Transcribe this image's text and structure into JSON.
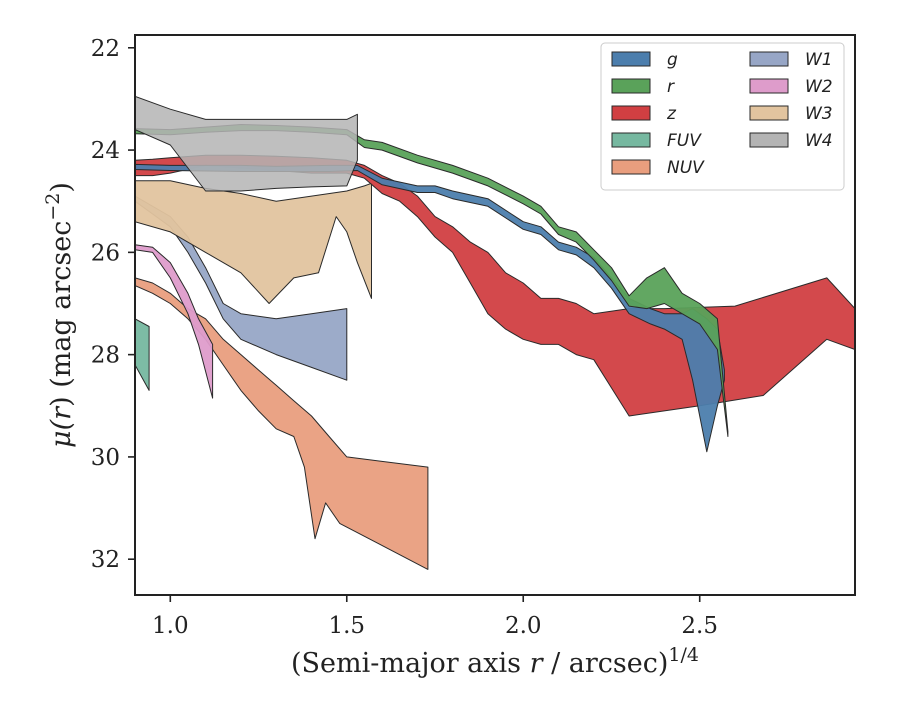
{
  "chart_data": {
    "type": "area",
    "xlabel_main": "(Semi-major axis ",
    "xlabel_var": "r",
    "xlabel_rest": " / arcsec)",
    "xlabel_sup": "1/4",
    "ylabel_main": "μ(",
    "ylabel_var": "r",
    "ylabel_rest": ") (mag arcsec",
    "ylabel_sup": "−2",
    "ylabel_end": ")",
    "xlim": [
      0.9,
      2.94
    ],
    "ylim": [
      32.7,
      21.75
    ],
    "y_inverted": true,
    "xticks": [
      {
        "v": 1.0,
        "label": "1.0"
      },
      {
        "v": 1.5,
        "label": "1.5"
      },
      {
        "v": 2.0,
        "label": "2.0"
      },
      {
        "v": 2.5,
        "label": "2.5"
      }
    ],
    "yticks": [
      {
        "v": 22,
        "label": "22"
      },
      {
        "v": 24,
        "label": "24"
      },
      {
        "v": 26,
        "label": "26"
      },
      {
        "v": 28,
        "label": "28"
      },
      {
        "v": 30,
        "label": "30"
      },
      {
        "v": 32,
        "label": "32"
      }
    ],
    "legend_position": "top-right",
    "legend_columns": 2,
    "draw_order": [
      "FUV",
      "NUV",
      "W2",
      "W1",
      "W3",
      "z",
      "g",
      "r",
      "W4"
    ],
    "series": [
      {
        "name": "g",
        "color": "#4c7ead",
        "legend_col": 0,
        "upper": [
          [
            0.9,
            24.28
          ],
          [
            1.0,
            24.3
          ],
          [
            1.2,
            24.3
          ],
          [
            1.3,
            24.32
          ],
          [
            1.45,
            24.3
          ],
          [
            1.53,
            24.3
          ],
          [
            1.6,
            24.55
          ],
          [
            1.7,
            24.7
          ],
          [
            1.75,
            24.7
          ],
          [
            1.8,
            24.8
          ],
          [
            1.9,
            24.95
          ],
          [
            2.0,
            25.4
          ],
          [
            2.05,
            25.5
          ],
          [
            2.1,
            25.8
          ],
          [
            2.15,
            25.9
          ],
          [
            2.2,
            26.1
          ],
          [
            2.25,
            26.5
          ],
          [
            2.3,
            26.9
          ],
          [
            2.33,
            27.0
          ],
          [
            2.36,
            27.1
          ],
          [
            2.4,
            27.2
          ],
          [
            2.45,
            27.2
          ],
          [
            2.48,
            27.1
          ],
          [
            2.52,
            27.3
          ],
          [
            2.55,
            27.5
          ],
          [
            2.57,
            28.3
          ]
        ],
        "lower": [
          [
            0.9,
            24.38
          ],
          [
            1.0,
            24.4
          ],
          [
            1.2,
            24.42
          ],
          [
            1.3,
            24.42
          ],
          [
            1.45,
            24.42
          ],
          [
            1.53,
            24.4
          ],
          [
            1.6,
            24.68
          ],
          [
            1.7,
            24.83
          ],
          [
            1.75,
            24.83
          ],
          [
            1.8,
            24.95
          ],
          [
            1.9,
            25.1
          ],
          [
            2.0,
            25.55
          ],
          [
            2.05,
            25.65
          ],
          [
            2.1,
            25.95
          ],
          [
            2.15,
            26.05
          ],
          [
            2.2,
            26.3
          ],
          [
            2.25,
            26.7
          ],
          [
            2.3,
            27.2
          ],
          [
            2.33,
            27.3
          ],
          [
            2.36,
            27.4
          ],
          [
            2.4,
            27.5
          ],
          [
            2.45,
            27.7
          ],
          [
            2.48,
            28.5
          ],
          [
            2.52,
            29.9
          ],
          [
            2.55,
            29.0
          ],
          [
            2.57,
            28.5
          ]
        ]
      },
      {
        "name": "r",
        "color": "#5aa25a",
        "legend_col": 0,
        "upper": [
          [
            0.9,
            23.58
          ],
          [
            1.0,
            23.6
          ],
          [
            1.1,
            23.55
          ],
          [
            1.2,
            23.5
          ],
          [
            1.3,
            23.52
          ],
          [
            1.4,
            23.55
          ],
          [
            1.5,
            23.6
          ],
          [
            1.55,
            23.8
          ],
          [
            1.6,
            23.85
          ],
          [
            1.7,
            24.1
          ],
          [
            1.8,
            24.3
          ],
          [
            1.9,
            24.55
          ],
          [
            2.0,
            24.9
          ],
          [
            2.05,
            25.1
          ],
          [
            2.1,
            25.5
          ],
          [
            2.15,
            25.6
          ],
          [
            2.2,
            25.95
          ],
          [
            2.25,
            26.3
          ],
          [
            2.3,
            26.85
          ],
          [
            2.35,
            26.5
          ],
          [
            2.4,
            26.3
          ],
          [
            2.45,
            26.8
          ],
          [
            2.5,
            27.0
          ],
          [
            2.55,
            27.3
          ],
          [
            2.58,
            29.5
          ]
        ],
        "lower": [
          [
            0.9,
            23.68
          ],
          [
            1.0,
            23.7
          ],
          [
            1.1,
            23.65
          ],
          [
            1.2,
            23.62
          ],
          [
            1.3,
            23.62
          ],
          [
            1.4,
            23.65
          ],
          [
            1.5,
            23.7
          ],
          [
            1.55,
            23.95
          ],
          [
            1.6,
            24.0
          ],
          [
            1.7,
            24.25
          ],
          [
            1.8,
            24.45
          ],
          [
            1.9,
            24.7
          ],
          [
            2.0,
            25.05
          ],
          [
            2.05,
            25.25
          ],
          [
            2.1,
            25.65
          ],
          [
            2.15,
            25.8
          ],
          [
            2.2,
            26.15
          ],
          [
            2.25,
            26.55
          ],
          [
            2.3,
            27.05
          ],
          [
            2.35,
            27.1
          ],
          [
            2.4,
            27.0
          ],
          [
            2.45,
            27.2
          ],
          [
            2.5,
            27.4
          ],
          [
            2.55,
            27.9
          ],
          [
            2.58,
            29.6
          ]
        ]
      },
      {
        "name": "z",
        "color": "#d13f42",
        "legend_col": 0,
        "upper": [
          [
            0.9,
            24.2
          ],
          [
            0.95,
            24.18
          ],
          [
            1.0,
            24.15
          ],
          [
            1.1,
            24.1
          ],
          [
            1.2,
            24.1
          ],
          [
            1.3,
            24.12
          ],
          [
            1.4,
            24.15
          ],
          [
            1.5,
            24.2
          ],
          [
            1.55,
            24.3
          ],
          [
            1.6,
            24.5
          ],
          [
            1.65,
            24.65
          ],
          [
            1.7,
            24.9
          ],
          [
            1.75,
            25.3
          ],
          [
            1.8,
            25.5
          ],
          [
            1.85,
            25.8
          ],
          [
            1.9,
            26.0
          ],
          [
            1.95,
            26.4
          ],
          [
            2.0,
            26.6
          ],
          [
            2.05,
            26.9
          ],
          [
            2.1,
            26.9
          ],
          [
            2.15,
            27.0
          ],
          [
            2.2,
            27.2
          ],
          [
            2.3,
            27.1
          ],
          [
            2.4,
            27.1
          ],
          [
            2.6,
            27.05
          ],
          [
            2.86,
            26.5
          ],
          [
            2.94,
            27.1
          ]
        ],
        "lower": [
          [
            0.9,
            24.5
          ],
          [
            0.95,
            24.5
          ],
          [
            1.0,
            24.45
          ],
          [
            1.1,
            24.3
          ],
          [
            1.2,
            24.35
          ],
          [
            1.3,
            24.4
          ],
          [
            1.4,
            24.45
          ],
          [
            1.5,
            24.45
          ],
          [
            1.55,
            24.55
          ],
          [
            1.6,
            24.85
          ],
          [
            1.65,
            25.0
          ],
          [
            1.7,
            25.3
          ],
          [
            1.75,
            25.7
          ],
          [
            1.8,
            26.0
          ],
          [
            1.85,
            26.6
          ],
          [
            1.9,
            27.2
          ],
          [
            1.95,
            27.5
          ],
          [
            2.0,
            27.7
          ],
          [
            2.05,
            27.8
          ],
          [
            2.1,
            27.8
          ],
          [
            2.15,
            28.0
          ],
          [
            2.2,
            28.1
          ],
          [
            2.3,
            29.2
          ],
          [
            2.5,
            29.0
          ],
          [
            2.68,
            28.8
          ],
          [
            2.86,
            27.7
          ],
          [
            2.94,
            27.9
          ]
        ]
      },
      {
        "name": "FUV",
        "color": "#76b8a0",
        "legend_col": 0,
        "upper": [
          [
            0.9,
            27.3
          ],
          [
            0.94,
            27.45
          ]
        ],
        "lower": [
          [
            0.9,
            28.2
          ],
          [
            0.94,
            28.7
          ]
        ]
      },
      {
        "name": "NUV",
        "color": "#e99e7e",
        "legend_col": 0,
        "upper": [
          [
            0.9,
            26.5
          ],
          [
            0.95,
            26.6
          ],
          [
            1.0,
            26.8
          ],
          [
            1.05,
            27.1
          ],
          [
            1.1,
            27.3
          ],
          [
            1.15,
            27.7
          ],
          [
            1.2,
            28.0
          ],
          [
            1.25,
            28.3
          ],
          [
            1.3,
            28.6
          ],
          [
            1.35,
            28.9
          ],
          [
            1.4,
            29.2
          ],
          [
            1.45,
            29.6
          ],
          [
            1.5,
            30.0
          ],
          [
            1.73,
            30.2
          ]
        ],
        "lower": [
          [
            0.9,
            26.65
          ],
          [
            0.95,
            26.8
          ],
          [
            1.0,
            27.0
          ],
          [
            1.05,
            27.3
          ],
          [
            1.1,
            27.7
          ],
          [
            1.15,
            28.2
          ],
          [
            1.2,
            28.7
          ],
          [
            1.25,
            29.1
          ],
          [
            1.3,
            29.45
          ],
          [
            1.35,
            29.6
          ],
          [
            1.38,
            30.2
          ],
          [
            1.41,
            31.6
          ],
          [
            1.44,
            30.9
          ],
          [
            1.48,
            31.3
          ],
          [
            1.73,
            32.2
          ]
        ]
      },
      {
        "name": "W1",
        "color": "#97a6c6",
        "legend_col": 1,
        "upper": [
          [
            0.9,
            24.9
          ],
          [
            1.0,
            25.3
          ],
          [
            1.05,
            25.7
          ],
          [
            1.1,
            26.3
          ],
          [
            1.15,
            27.0
          ],
          [
            1.2,
            27.2
          ],
          [
            1.3,
            27.3
          ],
          [
            1.4,
            27.2
          ],
          [
            1.5,
            27.1
          ]
        ],
        "lower": [
          [
            0.9,
            25.0
          ],
          [
            1.0,
            25.5
          ],
          [
            1.05,
            26.0
          ],
          [
            1.1,
            26.6
          ],
          [
            1.15,
            27.3
          ],
          [
            1.2,
            27.7
          ],
          [
            1.3,
            28.0
          ],
          [
            1.4,
            28.25
          ],
          [
            1.5,
            28.5
          ]
        ]
      },
      {
        "name": "W2",
        "color": "#de9ccb",
        "legend_col": 1,
        "upper": [
          [
            0.9,
            25.85
          ],
          [
            0.95,
            25.9
          ],
          [
            1.0,
            26.2
          ],
          [
            1.05,
            26.8
          ],
          [
            1.08,
            27.3
          ],
          [
            1.12,
            27.8
          ]
        ],
        "lower": [
          [
            0.9,
            25.95
          ],
          [
            0.95,
            26.0
          ],
          [
            1.0,
            26.5
          ],
          [
            1.05,
            27.2
          ],
          [
            1.08,
            27.8
          ],
          [
            1.12,
            28.85
          ]
        ]
      },
      {
        "name": "W3",
        "color": "#e2c49f",
        "legend_col": 1,
        "upper": [
          [
            0.9,
            24.6
          ],
          [
            1.0,
            24.6
          ],
          [
            1.1,
            24.75
          ],
          [
            1.2,
            24.85
          ],
          [
            1.3,
            25.0
          ],
          [
            1.4,
            24.9
          ],
          [
            1.5,
            24.8
          ],
          [
            1.55,
            24.7
          ],
          [
            1.57,
            24.65
          ]
        ],
        "lower": [
          [
            0.9,
            25.4
          ],
          [
            1.0,
            25.6
          ],
          [
            1.1,
            26.0
          ],
          [
            1.2,
            26.4
          ],
          [
            1.28,
            27.0
          ],
          [
            1.35,
            26.5
          ],
          [
            1.42,
            26.4
          ],
          [
            1.47,
            25.3
          ],
          [
            1.5,
            25.6
          ],
          [
            1.53,
            26.2
          ],
          [
            1.57,
            26.9
          ]
        ]
      },
      {
        "name": "W4",
        "color": "#b4b4b4",
        "legend_col": 1,
        "upper": [
          [
            0.9,
            22.95
          ],
          [
            1.0,
            23.2
          ],
          [
            1.1,
            23.4
          ],
          [
            1.2,
            23.4
          ],
          [
            1.3,
            23.4
          ],
          [
            1.4,
            23.4
          ],
          [
            1.5,
            23.4
          ],
          [
            1.53,
            23.3
          ]
        ],
        "lower": [
          [
            0.9,
            23.6
          ],
          [
            1.0,
            23.9
          ],
          [
            1.1,
            24.8
          ],
          [
            1.2,
            24.8
          ],
          [
            1.3,
            24.75
          ],
          [
            1.4,
            24.72
          ],
          [
            1.5,
            24.7
          ],
          [
            1.53,
            24.2
          ]
        ]
      }
    ]
  }
}
